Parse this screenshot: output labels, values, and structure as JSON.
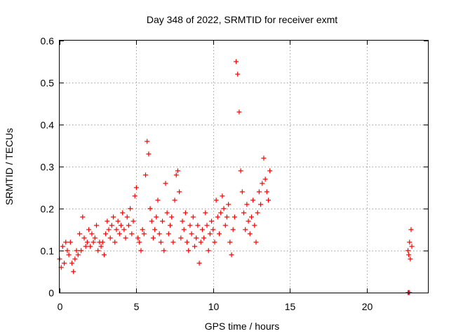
{
  "chart_data": {
    "type": "scatter",
    "title": "Day 348 of 2022, SRMTID for receiver exmt",
    "xlabel": "GPS time / hours",
    "ylabel": "SRMTID / TECUs",
    "xlim": [
      0,
      24
    ],
    "ylim": [
      0,
      0.6
    ],
    "xticks": [
      0,
      5,
      10,
      15,
      20
    ],
    "xtick_labels": [
      "0",
      "5",
      "10",
      "15",
      "20"
    ],
    "yticks": [
      0,
      0.1,
      0.2,
      0.3,
      0.4,
      0.5,
      0.6
    ],
    "ytick_labels": [
      "0",
      "0.1",
      "0.2",
      "0.3",
      "0.4",
      "0.5",
      "0.6"
    ],
    "grid": true,
    "marker": "+",
    "series": [
      {
        "name": "exmt",
        "color": "#ff0000",
        "x": [
          0.0,
          0.1,
          0.2,
          0.3,
          0.4,
          0.5,
          0.6,
          0.7,
          0.8,
          0.9,
          1.0,
          1.1,
          1.2,
          1.3,
          1.4,
          1.5,
          1.6,
          1.7,
          1.8,
          1.9,
          2.0,
          2.1,
          2.2,
          2.3,
          2.4,
          2.5,
          2.6,
          2.7,
          2.8,
          2.9,
          3.0,
          3.1,
          3.2,
          3.3,
          3.4,
          3.5,
          3.6,
          3.7,
          3.8,
          3.9,
          4.0,
          4.1,
          4.2,
          4.3,
          4.4,
          4.5,
          4.6,
          4.7,
          4.8,
          4.9,
          5.0,
          5.1,
          5.2,
          5.3,
          5.4,
          5.5,
          5.6,
          5.7,
          5.8,
          5.9,
          6.0,
          6.1,
          6.2,
          6.3,
          6.4,
          6.5,
          6.6,
          6.7,
          6.8,
          6.9,
          7.0,
          7.1,
          7.2,
          7.3,
          7.4,
          7.5,
          7.6,
          7.7,
          7.8,
          7.9,
          8.0,
          8.1,
          8.2,
          8.3,
          8.4,
          8.5,
          8.6,
          8.7,
          8.8,
          8.9,
          9.0,
          9.1,
          9.2,
          9.3,
          9.4,
          9.5,
          9.6,
          9.7,
          9.8,
          9.9,
          10.0,
          10.1,
          10.2,
          10.3,
          10.4,
          10.5,
          10.6,
          10.7,
          10.8,
          10.9,
          11.0,
          11.1,
          11.2,
          11.3,
          11.4,
          11.5,
          11.6,
          11.7,
          11.8,
          11.9,
          12.0,
          12.1,
          12.2,
          12.3,
          12.4,
          12.5,
          12.6,
          12.7,
          12.8,
          12.9,
          13.0,
          13.1,
          13.2,
          13.3,
          13.4,
          13.5,
          13.6,
          13.7,
          22.7,
          22.75,
          22.8,
          22.85,
          22.9,
          22.95,
          22.7,
          22.75,
          22.8
        ],
        "y": [
          0.08,
          0.06,
          0.11,
          0.07,
          0.12,
          0.1,
          0.09,
          0.12,
          0.07,
          0.05,
          0.08,
          0.1,
          0.09,
          0.14,
          0.1,
          0.18,
          0.13,
          0.11,
          0.12,
          0.15,
          0.11,
          0.14,
          0.12,
          0.13,
          0.16,
          0.1,
          0.12,
          0.11,
          0.12,
          0.09,
          0.14,
          0.17,
          0.15,
          0.13,
          0.16,
          0.18,
          0.12,
          0.15,
          0.17,
          0.14,
          0.16,
          0.19,
          0.15,
          0.13,
          0.18,
          0.16,
          0.2,
          0.14,
          0.17,
          0.23,
          0.25,
          0.13,
          0.12,
          0.1,
          0.15,
          0.14,
          0.28,
          0.36,
          0.33,
          0.2,
          0.17,
          0.13,
          0.15,
          0.18,
          0.22,
          0.14,
          0.12,
          0.17,
          0.1,
          0.26,
          0.19,
          0.14,
          0.16,
          0.18,
          0.12,
          0.22,
          0.28,
          0.29,
          0.24,
          0.13,
          0.17,
          0.15,
          0.19,
          0.12,
          0.1,
          0.16,
          0.14,
          0.18,
          0.11,
          0.13,
          0.16,
          0.07,
          0.12,
          0.15,
          0.13,
          0.19,
          0.16,
          0.1,
          0.14,
          0.17,
          0.15,
          0.12,
          0.22,
          0.18,
          0.14,
          0.19,
          0.23,
          0.2,
          0.16,
          0.18,
          0.21,
          0.12,
          0.09,
          0.15,
          0.18,
          0.55,
          0.52,
          0.43,
          0.29,
          0.24,
          0.19,
          0.15,
          0.21,
          0.17,
          0.14,
          0.18,
          0.22,
          0.16,
          0.12,
          0.19,
          0.24,
          0.21,
          0.26,
          0.32,
          0.27,
          0.24,
          0.22,
          0.29,
          0.1,
          0.09,
          0.12,
          0.08,
          0.15,
          0.11,
          0.0,
          0.0,
          0.0
        ]
      }
    ]
  }
}
